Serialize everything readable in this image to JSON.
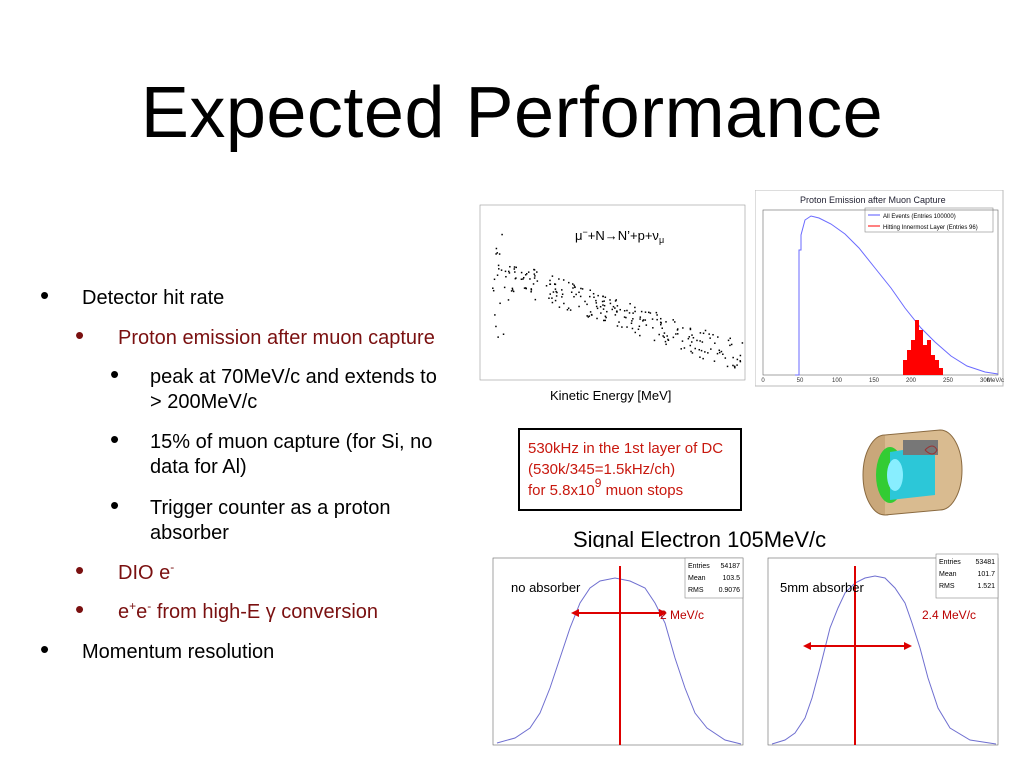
{
  "title": "Expected Performance",
  "bullets": [
    {
      "text": "Detector hit rate",
      "children": [
        {
          "text": "Proton emission after muon capture",
          "children": [
            {
              "text": "peak at 70MeV/c and extends to > 200MeV/c"
            },
            {
              "text": "15% of muon capture (for Si, no data for Al)"
            },
            {
              "text": "Trigger counter as a proton absorber"
            }
          ]
        },
        {
          "parts": [
            "DIO e",
            "-"
          ]
        },
        {
          "parts": [
            "e",
            "+",
            "e",
            "-",
            " from high-E γ conversion"
          ]
        }
      ]
    },
    {
      "text": "Momentum resolution"
    }
  ],
  "proton_plot_left": {
    "equation": [
      "μ",
      "−",
      "+N→N’+p+ν",
      "μ"
    ],
    "x_label": "Kinetic Energy [MeV]"
  },
  "proton_plot_right": {
    "title": "Proton Emission after Muon Capture",
    "legend": [
      "All Events (Entries 100000)",
      "Hitting Innermost Layer (Entries 96)"
    ],
    "x_ticks": [
      "0",
      "50",
      "100",
      "150",
      "200",
      "250",
      "300"
    ],
    "x_unit": "MeV/c"
  },
  "rate_box": {
    "lines": [
      [
        "530kHz in the 1st layer of DC"
      ],
      [
        "(530k/345=1.5kHz/ch)"
      ],
      [
        "for 5.8x10",
        "9",
        " muon stops"
      ]
    ]
  },
  "signal_heading": "Signal Electron 105MeV/c",
  "resolution_plots": [
    {
      "label": "no absorber",
      "width": "2 MeV/c",
      "stats": [
        [
          "Entries",
          "54187"
        ],
        [
          "Mean",
          "103.5"
        ],
        [
          "RMS",
          "0.9076"
        ]
      ]
    },
    {
      "label": "5mm absorber",
      "width": "2.4 MeV/c",
      "stats": [
        [
          "Entries",
          "53481"
        ],
        [
          "Mean",
          "101.7"
        ],
        [
          "RMS",
          "1.521"
        ]
      ]
    }
  ]
}
